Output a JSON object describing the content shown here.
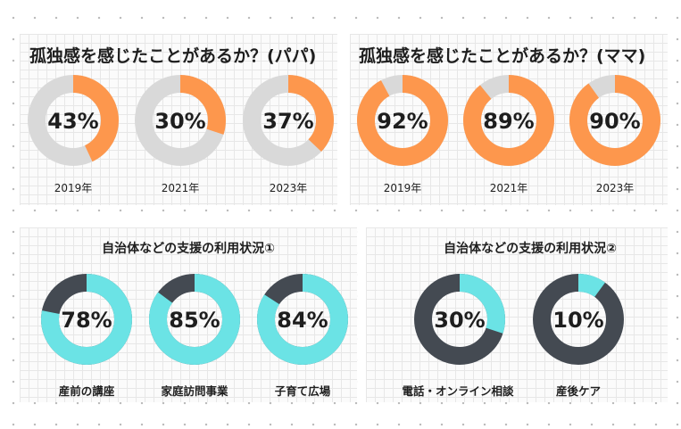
{
  "colors": {
    "orange": "#fd974d",
    "gray_track": "#d9d9d9",
    "cyan": "#6be3e5",
    "dark": "#444a52"
  },
  "chart_data": [
    {
      "type": "pie",
      "title": "孤独感を感じたことがあるか？(パパ)",
      "categories": [
        "2019年",
        "2021年",
        "2023年"
      ],
      "values": [
        43,
        30,
        37
      ],
      "labels": [
        "43%",
        "30%",
        "37%"
      ],
      "fill_color": "#fd974d",
      "track_color": "#d9d9d9"
    },
    {
      "type": "pie",
      "title": "孤独感を感じたことがあるか？(ママ)",
      "categories": [
        "2019年",
        "2021年",
        "2023年"
      ],
      "values": [
        92,
        89,
        90
      ],
      "labels": [
        "92%",
        "89%",
        "90%"
      ],
      "fill_color": "#fd974d",
      "track_color": "#d9d9d9"
    },
    {
      "type": "pie",
      "title": "自治体などの支援の利用状況①",
      "categories": [
        "産前の講座",
        "家庭訪問事業",
        "子育て広場"
      ],
      "values": [
        78,
        85,
        84
      ],
      "labels": [
        "78%",
        "85%",
        "84%"
      ],
      "fill_color": "#6be3e5",
      "track_color": "#444a52"
    },
    {
      "type": "pie",
      "title": "自治体などの支援の利用状況②",
      "categories": [
        "電話・オンライン相談",
        "産後ケア"
      ],
      "values": [
        30,
        10
      ],
      "labels": [
        "30%",
        "10%"
      ],
      "fill_color": "#6be3e5",
      "track_color": "#444a52"
    }
  ]
}
